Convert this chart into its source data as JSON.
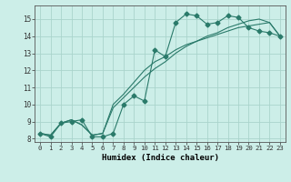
{
  "xlabel": "Humidex (Indice chaleur)",
  "background_color": "#cceee8",
  "grid_color": "#aad4cc",
  "line_color": "#2a7a6a",
  "xlim": [
    -0.5,
    23.5
  ],
  "ylim": [
    7.8,
    15.8
  ],
  "yticks": [
    8,
    9,
    10,
    11,
    12,
    13,
    14,
    15
  ],
  "xticks": [
    0,
    1,
    2,
    3,
    4,
    5,
    6,
    7,
    8,
    9,
    10,
    11,
    12,
    13,
    14,
    15,
    16,
    17,
    18,
    19,
    20,
    21,
    22,
    23
  ],
  "series1_x": [
    0,
    1,
    2,
    3,
    4,
    5,
    6,
    7,
    8,
    9,
    10,
    11,
    12,
    13,
    14,
    15,
    16,
    17,
    18,
    19,
    20,
    21,
    22,
    23
  ],
  "series1_y": [
    8.3,
    8.1,
    8.9,
    9.0,
    9.1,
    8.1,
    8.1,
    8.3,
    10.0,
    10.5,
    10.2,
    13.2,
    12.8,
    14.8,
    15.3,
    15.2,
    14.7,
    14.8,
    15.2,
    15.1,
    14.5,
    14.3,
    14.2,
    14.0
  ],
  "series2_x": [
    0,
    1,
    2,
    3,
    4,
    5,
    6,
    7,
    8,
    9,
    10,
    11,
    12,
    13,
    14,
    15,
    16,
    17,
    18,
    19,
    20,
    21,
    22,
    23
  ],
  "series2_y": [
    8.3,
    8.2,
    8.9,
    9.1,
    8.8,
    8.2,
    8.3,
    9.8,
    10.4,
    11.0,
    11.6,
    12.1,
    12.5,
    13.0,
    13.4,
    13.7,
    14.0,
    14.2,
    14.5,
    14.7,
    14.9,
    15.0,
    14.8,
    14.0
  ],
  "series3_x": [
    0,
    1,
    2,
    3,
    4,
    5,
    6,
    7,
    8,
    9,
    10,
    11,
    12,
    13,
    14,
    15,
    16,
    17,
    18,
    19,
    20,
    21,
    22,
    23
  ],
  "series3_y": [
    8.3,
    8.2,
    8.9,
    9.1,
    8.8,
    8.2,
    8.3,
    10.0,
    10.6,
    11.3,
    12.0,
    12.5,
    12.8,
    13.2,
    13.5,
    13.7,
    13.9,
    14.1,
    14.3,
    14.5,
    14.6,
    14.7,
    14.8,
    14.0
  ]
}
